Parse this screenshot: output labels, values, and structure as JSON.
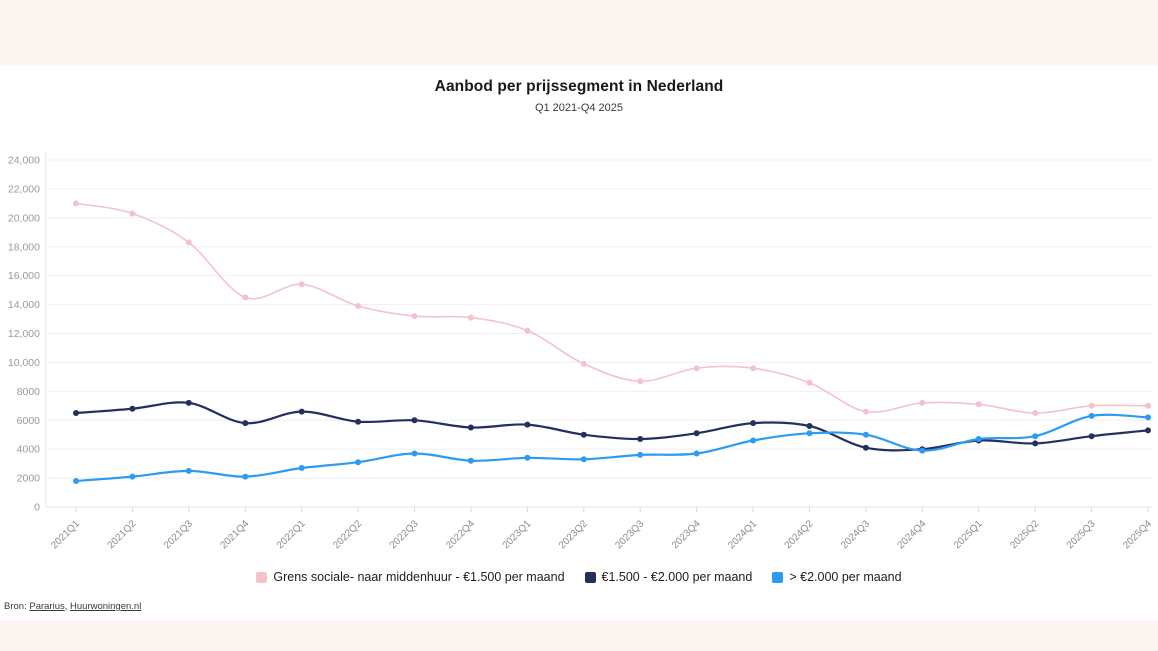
{
  "colors": {
    "page_background": "#fdf5f2",
    "card_background": "#ffffff",
    "gridline": "#f1eef0",
    "axis_text": "#999999",
    "pink_series": "#f4c3c9",
    "navy_series": "#252f5e",
    "blue_series": "#2b9bf4"
  },
  "source": {
    "label": "Bron:",
    "links": [
      {
        "text": "Pararius"
      },
      {
        "text": "Huurwoningen.nl"
      }
    ],
    "separator": ", "
  },
  "chart_data": {
    "type": "line",
    "title": "Aanbod per prijssegment in Nederland",
    "subtitle": "Q1 2021-Q4 2025",
    "xlabel": "",
    "ylabel": "",
    "ylim": [
      0,
      24000
    ],
    "y_tick_step": 2000,
    "y_ticks": [
      "0",
      "2000",
      "4000",
      "6000",
      "8000",
      "10,000",
      "12,000",
      "14,000",
      "16,000",
      "18,000",
      "20,000",
      "22,000",
      "24,000"
    ],
    "grid": true,
    "legend_position": "bottom",
    "x_label_rotation": -45,
    "categories": [
      "2021Q1",
      "2021Q2",
      "2021Q3",
      "2021Q4",
      "2022Q1",
      "2022Q2",
      "2022Q3",
      "2022Q4",
      "2023Q1",
      "2023Q2",
      "2023Q3",
      "2023Q4",
      "2024Q1",
      "2024Q2",
      "2024Q3",
      "2024Q4",
      "2025Q1",
      "2025Q2",
      "2025Q3",
      "2025Q4"
    ],
    "series": [
      {
        "id": "grens-sociale-naar-middenhuur",
        "name": "Grens sociale- naar middenhuur - €1.500 per maand",
        "color": "#f4c3c9",
        "line_width": 1.6,
        "values": [
          21000,
          20300,
          18300,
          14500,
          15400,
          13900,
          13200,
          13100,
          12200,
          9900,
          8700,
          9600,
          9600,
          8600,
          6600,
          7200,
          7100,
          6500,
          7000,
          7000
        ]
      },
      {
        "id": "1500-2000-per-maand",
        "name": "€1.500 - €2.000 per maand",
        "color": "#252f5e",
        "line_width": 2.2,
        "values": [
          6500,
          6800,
          7200,
          5800,
          6600,
          5900,
          6000,
          5500,
          5700,
          5000,
          4700,
          5100,
          5800,
          5600,
          4100,
          4000,
          4600,
          4400,
          4900,
          5300
        ]
      },
      {
        "id": "boven-2000-per-maand",
        "name": "> €2.000 per maand",
        "color": "#2b9bf4",
        "line_width": 2.2,
        "values": [
          1800,
          2100,
          2500,
          2100,
          2700,
          3100,
          3700,
          3200,
          3400,
          3300,
          3600,
          3700,
          4600,
          5100,
          5000,
          3900,
          4700,
          4900,
          6300,
          6200
        ]
      }
    ]
  }
}
